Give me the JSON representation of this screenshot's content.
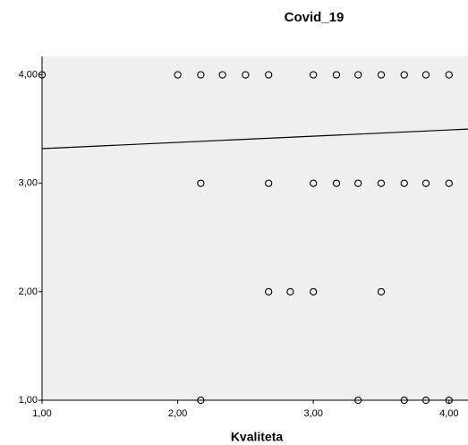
{
  "chart_data": {
    "type": "scatter",
    "title": "Covid_19",
    "x_label": "Kvaliteta",
    "x": [
      1,
      2,
      2.17,
      2.33,
      2.5,
      2.67,
      3,
      3.17,
      3.33,
      3.5,
      3.67,
      3.83,
      4,
      2.17,
      2.67,
      3,
      3.17,
      3.33,
      3.5,
      3.67,
      3.83,
      4,
      2.67,
      2.83,
      3,
      3.5,
      2.17,
      3.33,
      3.67,
      3.83,
      4
    ],
    "y": [
      4,
      4,
      4,
      4,
      4,
      4,
      4,
      4,
      4,
      4,
      4,
      4,
      4,
      3,
      3,
      3,
      3,
      3,
      3,
      3,
      3,
      3,
      2,
      2,
      2,
      2,
      1,
      1,
      1,
      1,
      1
    ],
    "fit_line": {
      "x": [
        1,
        4.14
      ],
      "y": [
        3.32,
        3.5
      ]
    },
    "xlim": [
      1,
      4.14
    ],
    "ylim": [
      1,
      4.17
    ],
    "xticks": [
      {
        "value": 1,
        "label": "1,00"
      },
      {
        "value": 2,
        "label": "2,00"
      },
      {
        "value": 3,
        "label": "3,00"
      },
      {
        "value": 4,
        "label": "4,00"
      }
    ],
    "yticks": [
      {
        "value": 1,
        "label": "1,00"
      },
      {
        "value": 2,
        "label": "2,00"
      },
      {
        "value": 3,
        "label": "3,00"
      },
      {
        "value": 4,
        "label": "4,00"
      }
    ],
    "plot_background": "#f0f0f0",
    "marker_color": "#000000"
  }
}
